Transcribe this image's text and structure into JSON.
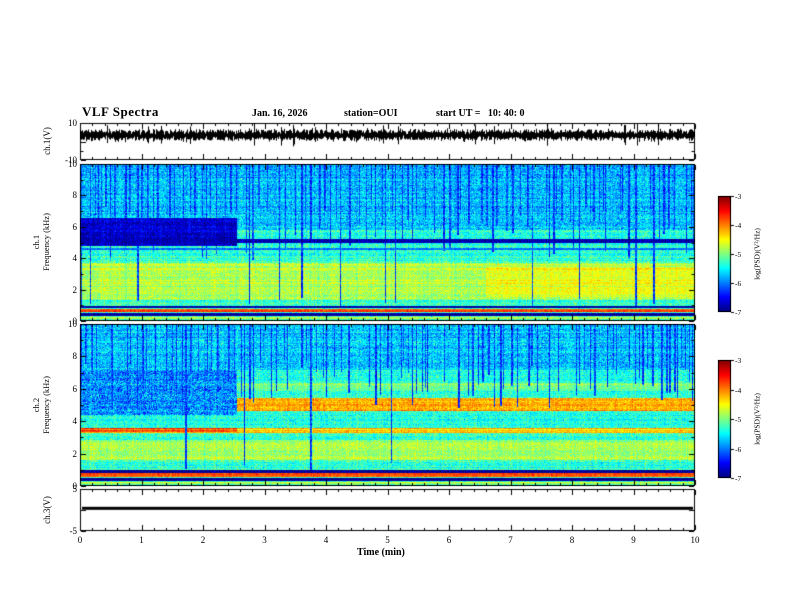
{
  "figure": {
    "title": "VLF Spectra",
    "date": "Jan. 16, 2026",
    "station": "station=OUI",
    "start_ut": "start UT =   10: 40: 0",
    "xlabel": "Time (min)"
  },
  "axes": {
    "x": {
      "tick_labels": [
        "0",
        "1",
        "2",
        "3",
        "4",
        "5",
        "6",
        "7",
        "8",
        "9",
        "10"
      ],
      "range_min": [
        0,
        10
      ]
    },
    "ch1_wave": {
      "ylabel": "ch.1(V)",
      "ytick_labels": [
        "10",
        "-10"
      ],
      "range_V": [
        -10,
        10
      ]
    },
    "ch1_spec": {
      "ylabel_channel": "ch.1",
      "ylabel_axis": "Frequency (kHz)",
      "ytick_labels": [
        "10",
        "8",
        "6",
        "4",
        "2",
        "0"
      ],
      "range_kHz": [
        0,
        10
      ]
    },
    "ch2_spec": {
      "ylabel_channel": "ch.2",
      "ylabel_axis": "Frequency (kHz)",
      "ytick_labels": [
        "10",
        "8",
        "6",
        "4",
        "2",
        "0"
      ],
      "range_kHz": [
        0,
        10
      ]
    },
    "ch3_wave": {
      "ylabel": "ch.3(V)",
      "ytick_labels": [
        "5",
        "-5"
      ],
      "range_V": [
        -5,
        5
      ]
    }
  },
  "colorbars": {
    "label": "log(PSD)(V²/Hz)",
    "tick_labels": [
      "-3",
      "-4",
      "-5",
      "-6",
      "-7"
    ],
    "range_logPSD": [
      -7,
      -3
    ],
    "colormap": "jet (dark blue -7 through cyan, green, yellow to red -3)"
  },
  "chart_data": [
    {
      "type": "line",
      "name": "ch1-voltage-waveform",
      "panel": "ch1_wave",
      "x_range_min": [
        0,
        10
      ],
      "y_range_V": [
        -10,
        10
      ],
      "description": "dense continuous broadband noise trace across full record",
      "mean_V": 3.5,
      "typical_peak_to_peak_V": 4.4,
      "seed": 11
    },
    {
      "type": "heatmap",
      "name": "ch1-spectrogram",
      "panel": "ch1_spec",
      "x_range_min": [
        0,
        10
      ],
      "y_range_kHz": [
        0,
        10
      ],
      "z_log_psd_range": [
        -7,
        -3
      ],
      "background_log_psd": -5.35,
      "background_noise": 0.38,
      "seed": 7,
      "features": [
        {
          "kind": "band",
          "f_kHz": [
            5.8,
            10
          ],
          "t_min": [
            0,
            10
          ],
          "log_psd": -5.75,
          "noise": 0.45,
          "description": "cyan-blue upper background"
        },
        {
          "kind": "band",
          "f_kHz": [
            0,
            1.1
          ],
          "t_min": [
            0,
            10
          ],
          "log_psd": -5.2,
          "noise": 0.4,
          "description": "green low-frequency background"
        },
        {
          "kind": "band",
          "f_kHz": [
            1.3,
            3.7
          ],
          "t_min": [
            0,
            10
          ],
          "log_psd": -4.8,
          "noise": 0.3,
          "description": "yellow-green emission band 1.3-3.7 kHz"
        },
        {
          "kind": "band",
          "f_kHz": [
            1.5,
            3.4
          ],
          "t_min": [
            6.6,
            10
          ],
          "log_psd": -4.55,
          "noise": 0.25,
          "description": "band brightens after ~6.6 min"
        },
        {
          "kind": "patch",
          "f_kHz": [
            4.75,
            6.6
          ],
          "t_min": [
            0,
            2.55
          ],
          "log_psd": -6.7,
          "noise": 0.35,
          "description": "dark blue-black patch before 2.55 min"
        },
        {
          "kind": "line",
          "f_kHz": [
            4.95,
            5.2
          ],
          "t_min": [
            0,
            10
          ],
          "log_psd": -6.8,
          "noise": 0.2,
          "description": "persistent dark line near 5 kHz"
        },
        {
          "kind": "line",
          "f_kHz": [
            4.5,
            4.62
          ],
          "t_min": [
            0,
            10
          ],
          "log_psd": -6.1,
          "noise": 0.2,
          "description": "faint dark line near 4.55 kHz"
        },
        {
          "kind": "line",
          "f_kHz": [
            0.8,
            0.95
          ],
          "t_min": [
            0,
            10
          ],
          "log_psd": -6.8,
          "noise": 0.15,
          "description": "dark line near 0.85 kHz"
        },
        {
          "kind": "line",
          "f_kHz": [
            0.55,
            0.75
          ],
          "t_min": [
            0,
            10
          ],
          "log_psd": -3.8,
          "noise": 0.2,
          "description": "red narrowband line near 0.65 kHz"
        },
        {
          "kind": "line",
          "f_kHz": [
            0.3,
            0.45
          ],
          "t_min": [
            0,
            10
          ],
          "log_psd": -6.9,
          "noise": 0.1,
          "description": "black line near 0.4 kHz"
        },
        {
          "kind": "line",
          "f_kHz": [
            0.08,
            0.2
          ],
          "t_min": [
            0,
            10
          ],
          "log_psd": -4.8,
          "noise": 0.2,
          "description": "green-yellow strip at bottom"
        },
        {
          "kind": "streaks",
          "f_bottom_range_kHz": [
            3.9,
            7.5
          ],
          "density": 0.28,
          "log_psd": -6.3,
          "full_height_fraction": 0.08,
          "description": "many dark-blue vertical impulsive streaks from 10 kHz downward"
        }
      ]
    },
    {
      "type": "heatmap",
      "name": "ch2-spectrogram",
      "panel": "ch2_spec",
      "x_range_min": [
        0,
        10
      ],
      "y_range_kHz": [
        0,
        10
      ],
      "z_log_psd_range": [
        -7,
        -3
      ],
      "background_log_psd": -5.35,
      "background_noise": 0.38,
      "seed": 23,
      "features": [
        {
          "kind": "band",
          "f_kHz": [
            7.2,
            10
          ],
          "t_min": [
            0,
            10
          ],
          "log_psd": -5.7,
          "noise": 0.45,
          "description": "cyan-blue upper background"
        },
        {
          "kind": "band",
          "f_kHz": [
            0,
            1.1
          ],
          "t_min": [
            0,
            10
          ],
          "log_psd": -5.2,
          "noise": 0.4,
          "description": "green low-frequency background"
        },
        {
          "kind": "band",
          "f_kHz": [
            1.6,
            2.8
          ],
          "t_min": [
            0,
            10
          ],
          "log_psd": -4.85,
          "noise": 0.3,
          "description": "yellow-green band 1.6-2.8 kHz"
        },
        {
          "kind": "patch",
          "f_kHz": [
            4.4,
            7.2
          ],
          "t_min": [
            0,
            2.55
          ],
          "log_psd": -5.95,
          "noise": 0.55,
          "description": "mottled blue patch before 2.55 min"
        },
        {
          "kind": "band",
          "f_kHz": [
            4.6,
            5.45
          ],
          "t_min": [
            2.55,
            10
          ],
          "log_psd": -4.15,
          "noise": 0.3,
          "description": "bright yellow band near 5 kHz after 2.55 min"
        },
        {
          "kind": "band",
          "f_kHz": [
            5.9,
            6.35
          ],
          "t_min": [
            2.55,
            10
          ],
          "log_psd": -5.05,
          "noise": 0.3,
          "description": "greenish band near 6 kHz after 2.55 min"
        },
        {
          "kind": "line",
          "f_kHz": [
            3.25,
            3.6
          ],
          "t_min": [
            0,
            10
          ],
          "log_psd": -4.3,
          "noise": 0.25,
          "description": "yellow line near 3.4 kHz full record"
        },
        {
          "kind": "line",
          "f_kHz": [
            3.3,
            3.55
          ],
          "t_min": [
            0,
            2.55
          ],
          "log_psd": -3.8,
          "noise": 0.25,
          "description": "line is orange-red before 2.55 min"
        },
        {
          "kind": "line",
          "f_kHz": [
            0.8,
            0.95
          ],
          "t_min": [
            0,
            10
          ],
          "log_psd": -6.8,
          "noise": 0.15,
          "description": "dark line near 0.85 kHz"
        },
        {
          "kind": "line",
          "f_kHz": [
            0.55,
            0.75
          ],
          "t_min": [
            0,
            10
          ],
          "log_psd": -3.8,
          "noise": 0.2,
          "description": "red narrowband line near 0.65 kHz"
        },
        {
          "kind": "line",
          "f_kHz": [
            0.3,
            0.45
          ],
          "t_min": [
            0,
            10
          ],
          "log_psd": -6.9,
          "noise": 0.1,
          "description": "black line near 0.4 kHz"
        },
        {
          "kind": "line",
          "f_kHz": [
            0.08,
            0.2
          ],
          "t_min": [
            0,
            10
          ],
          "log_psd": -4.8,
          "noise": 0.2,
          "description": "green-yellow strip at bottom"
        },
        {
          "kind": "streaks",
          "f_bottom_range_kHz": [
            4.6,
            7.8
          ],
          "density": 0.22,
          "log_psd": -6.3,
          "full_height_fraction": 0.05,
          "description": "dark-blue vertical impulsive streaks"
        }
      ]
    },
    {
      "type": "line",
      "name": "ch3-voltage-waveform",
      "panel": "ch3_wave",
      "x_range_min": [
        0,
        10
      ],
      "y_range_V": [
        -5,
        5
      ],
      "description": "constant flat thick black trace",
      "value_V": 0.4,
      "seed": 5
    }
  ]
}
